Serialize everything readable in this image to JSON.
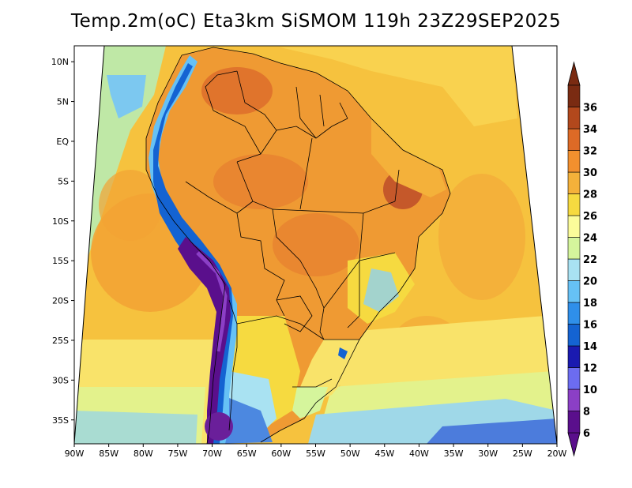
{
  "map": {
    "title": "Temp.2m(oC) Eta3km SiSMOM 119h 23Z29SEP2025",
    "variable": "2 m air temperature",
    "units": "oC",
    "region": "South America",
    "lon_range": [
      -90,
      -20
    ],
    "lat_range": [
      -38,
      12
    ],
    "lat_ticks": [
      {
        "value": 10,
        "label": "10N"
      },
      {
        "value": 5,
        "label": "5N"
      },
      {
        "value": 0,
        "label": "EQ"
      },
      {
        "value": -5,
        "label": "5S"
      },
      {
        "value": -10,
        "label": "10S"
      },
      {
        "value": -15,
        "label": "15S"
      },
      {
        "value": -20,
        "label": "20S"
      },
      {
        "value": -25,
        "label": "25S"
      },
      {
        "value": -30,
        "label": "30S"
      },
      {
        "value": -35,
        "label": "35S"
      }
    ],
    "lon_ticks": [
      {
        "value": -90,
        "label": "90W"
      },
      {
        "value": -85,
        "label": "85W"
      },
      {
        "value": -80,
        "label": "80W"
      },
      {
        "value": -75,
        "label": "75W"
      },
      {
        "value": -70,
        "label": "70W"
      },
      {
        "value": -65,
        "label": "65W"
      },
      {
        "value": -60,
        "label": "60W"
      },
      {
        "value": -55,
        "label": "55W"
      },
      {
        "value": -50,
        "label": "50W"
      },
      {
        "value": -45,
        "label": "45W"
      },
      {
        "value": -40,
        "label": "40W"
      },
      {
        "value": -35,
        "label": "35W"
      },
      {
        "value": -30,
        "label": "30W"
      },
      {
        "value": -25,
        "label": "25W"
      },
      {
        "value": -20,
        "label": "20W"
      }
    ]
  },
  "colorbar": {
    "levels": [
      6,
      8,
      10,
      12,
      14,
      16,
      18,
      20,
      22,
      24,
      26,
      28,
      30,
      32,
      34,
      36
    ],
    "labels": [
      "6",
      "8",
      "10",
      "12",
      "14",
      "16",
      "18",
      "20",
      "22",
      "24",
      "26",
      "28",
      "30",
      "32",
      "34",
      "36"
    ],
    "colors": [
      "#5a0f8c",
      "#8b3fc6",
      "#6c6cf0",
      "#1a1ab0",
      "#1463d2",
      "#2f8fea",
      "#66c1f5",
      "#a9e2f2",
      "#d5f59c",
      "#fbfc9a",
      "#f6da40",
      "#f4b13a",
      "#f2902e",
      "#dd6a26",
      "#b2481c",
      "#7a2b12"
    ]
  },
  "palette": {
    "ocean_warm": "#f6c23e",
    "ocean_hot": "#f2a234",
    "ocean_mild": "#f9e36a",
    "ocean_cool": "#e3f28c",
    "ocean_cooler": "#b5e3a6",
    "land_hot": "#ef9a33",
    "andes_cold": "#5e2a8f",
    "patagonia_cool": "#6fb6d0",
    "border_line": "#000000"
  }
}
